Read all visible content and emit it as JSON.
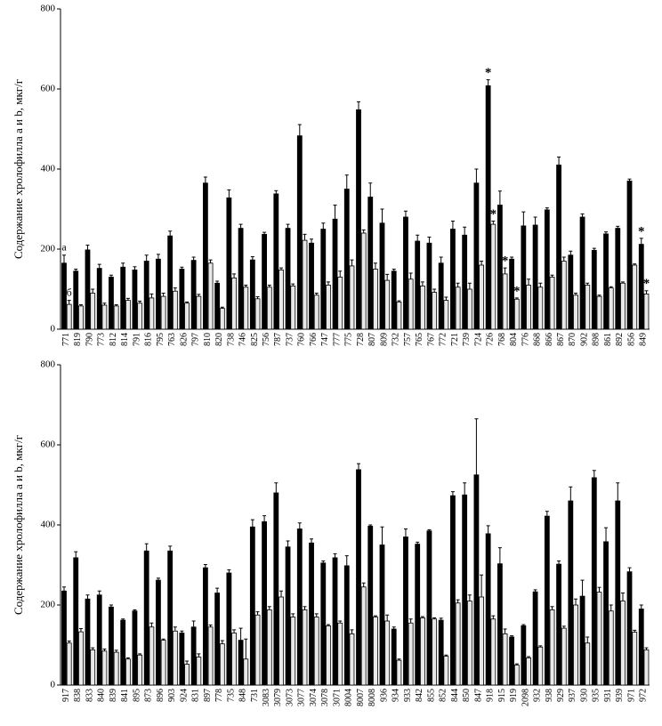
{
  "chart_data": [
    {
      "type": "bar",
      "ylabel": "Содержание хролофилла a и b, мкг/г",
      "ylim": [
        0,
        800
      ],
      "yticks": [
        0,
        200,
        400,
        600,
        800
      ],
      "categories": [
        "771",
        "819",
        "790",
        "773",
        "812",
        "814",
        "791",
        "816",
        "795",
        "763",
        "826",
        "797",
        "810",
        "820",
        "738",
        "746",
        "825",
        "756",
        "787",
        "737",
        "760",
        "766",
        "747",
        "777",
        "775",
        "728",
        "807",
        "809",
        "732",
        "757",
        "765",
        "767",
        "772",
        "721",
        "739",
        "724",
        "726",
        "768",
        "804",
        "776",
        "868",
        "866",
        "867",
        "870",
        "902",
        "898",
        "861",
        "892",
        "856",
        "849"
      ],
      "series": [
        {
          "name": "a",
          "color": "#000000",
          "values": [
            165,
            145,
            198,
            152,
            130,
            155,
            148,
            170,
            175,
            233,
            150,
            172,
            365,
            115,
            328,
            252,
            173,
            237,
            338,
            252,
            483,
            215,
            250,
            275,
            350,
            548,
            330,
            265,
            145,
            280,
            220,
            215,
            165,
            250,
            235,
            365,
            608,
            310,
            175,
            258,
            260,
            298,
            410,
            185,
            280,
            197,
            238,
            252,
            370,
            212
          ],
          "errors": [
            20,
            5,
            12,
            10,
            5,
            10,
            8,
            15,
            12,
            12,
            5,
            8,
            15,
            5,
            20,
            10,
            8,
            5,
            8,
            10,
            28,
            10,
            15,
            35,
            35,
            20,
            35,
            35,
            5,
            15,
            15,
            15,
            15,
            20,
            20,
            35,
            15,
            35,
            5,
            35,
            20,
            5,
            20,
            10,
            8,
            5,
            5,
            5,
            5,
            15
          ]
        },
        {
          "name": "б",
          "color": "#e8e8e8",
          "values": [
            62,
            58,
            90,
            60,
            58,
            72,
            65,
            78,
            82,
            95,
            65,
            82,
            165,
            52,
            128,
            105,
            76,
            105,
            148,
            108,
            222,
            85,
            110,
            130,
            158,
            240,
            150,
            122,
            68,
            125,
            108,
            92,
            72,
            105,
            100,
            160,
            262,
            138,
            75,
            110,
            105,
            130,
            170,
            85,
            110,
            82,
            103,
            115,
            160,
            88
          ],
          "errors": [
            10,
            3,
            10,
            5,
            3,
            5,
            5,
            10,
            8,
            8,
            3,
            5,
            8,
            3,
            10,
            5,
            5,
            5,
            5,
            5,
            15,
            5,
            8,
            15,
            15,
            8,
            15,
            15,
            3,
            15,
            10,
            8,
            8,
            10,
            15,
            10,
            8,
            15,
            3,
            15,
            10,
            5,
            10,
            5,
            5,
            3,
            3,
            3,
            3,
            8
          ]
        }
      ],
      "annotations": [
        {
          "text": "*",
          "category": "726",
          "series": "a"
        },
        {
          "text": "*",
          "category": "726",
          "series": "б"
        },
        {
          "text": "*",
          "category": "768",
          "series": "б"
        },
        {
          "text": "*",
          "category": "804",
          "series": "б"
        },
        {
          "text": "*",
          "category": "849",
          "series": "a"
        },
        {
          "text": "*",
          "category": "849",
          "series": "б"
        }
      ]
    },
    {
      "type": "bar",
      "ylabel": "Содержание хролофилла a и b, мкг/г",
      "ylim": [
        0,
        800
      ],
      "yticks": [
        0,
        200,
        400,
        600,
        800
      ],
      "categories": [
        "917",
        "838",
        "833",
        "840",
        "839",
        "841",
        "895",
        "873",
        "896",
        "903",
        "924",
        "831",
        "897",
        "778",
        "735",
        "848",
        "731",
        "3083",
        "3079",
        "3073",
        "3077",
        "3074",
        "3078",
        "3071",
        "8004",
        "8007",
        "8008",
        "936",
        "934",
        "933",
        "842",
        "855",
        "852",
        "844",
        "850",
        "847",
        "918",
        "915",
        "919",
        "2098",
        "932",
        "938",
        "929",
        "937",
        "930",
        "935",
        "931",
        "939",
        "971",
        "972"
      ],
      "series": [
        {
          "color": "#000000",
          "values": [
            235,
            318,
            215,
            225,
            195,
            162,
            185,
            335,
            262,
            335,
            130,
            145,
            293,
            230,
            280,
            112,
            395,
            408,
            480,
            345,
            390,
            355,
            305,
            318,
            298,
            538,
            397,
            350,
            140,
            370,
            352,
            385,
            162,
            473,
            475,
            525,
            378,
            303,
            120,
            148,
            233,
            422,
            302,
            460,
            222,
            518,
            358,
            460,
            283,
            190
          ],
          "errors": [
            10,
            15,
            10,
            10,
            5,
            3,
            3,
            18,
            5,
            12,
            5,
            15,
            8,
            12,
            8,
            30,
            18,
            15,
            25,
            15,
            15,
            10,
            5,
            10,
            25,
            15,
            3,
            45,
            5,
            20,
            5,
            3,
            5,
            10,
            30,
            140,
            20,
            40,
            3,
            3,
            5,
            12,
            8,
            35,
            40,
            18,
            35,
            45,
            10,
            10
          ]
        },
        {
          "color": "#e8e8e8",
          "values": [
            105,
            133,
            88,
            85,
            82,
            65,
            75,
            145,
            112,
            135,
            52,
            70,
            145,
            103,
            130,
            65,
            175,
            188,
            220,
            170,
            188,
            170,
            148,
            155,
            128,
            245,
            170,
            160,
            62,
            155,
            168,
            165,
            72,
            205,
            210,
            220,
            165,
            128,
            50,
            68,
            95,
            188,
            142,
            200,
            105,
            232,
            185,
            210,
            132,
            88
          ],
          "errors": [
            5,
            8,
            5,
            5,
            5,
            3,
            3,
            10,
            3,
            10,
            8,
            8,
            5,
            8,
            8,
            50,
            8,
            8,
            15,
            8,
            8,
            8,
            3,
            5,
            10,
            10,
            3,
            15,
            3,
            10,
            3,
            3,
            3,
            8,
            15,
            55,
            8,
            12,
            3,
            3,
            3,
            8,
            5,
            15,
            15,
            12,
            15,
            20,
            5,
            5
          ]
        }
      ]
    }
  ]
}
